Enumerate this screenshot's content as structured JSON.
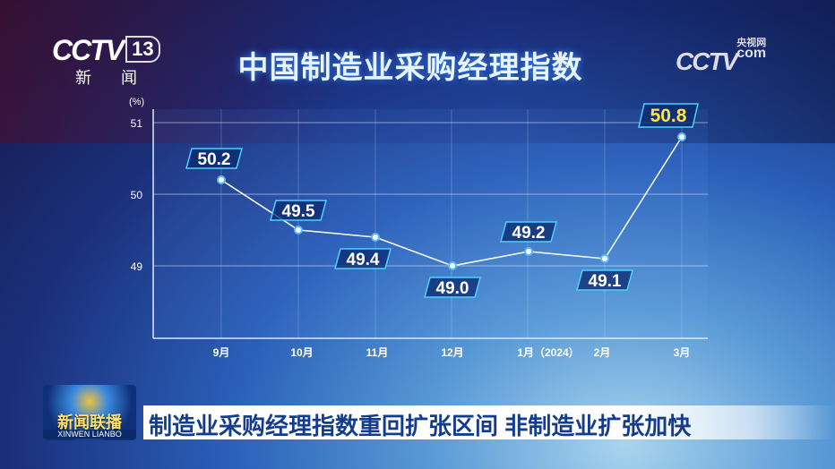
{
  "header": {
    "title": "中国制造业采购经理指数",
    "channel_logo": "CCTV",
    "channel_number": "13",
    "channel_name": "新 闻",
    "site_logo": "CCTV",
    "site_small": "央视网",
    "site_suffix": "com"
  },
  "chart_data": {
    "type": "line",
    "title": "中国制造业采购经理指数",
    "ylabel": "(%)",
    "categories": [
      "9月",
      "10月",
      "11月",
      "12月",
      "1月（2024）",
      "2月",
      "3月"
    ],
    "values": [
      50.2,
      49.5,
      49.4,
      49.0,
      49.2,
      49.1,
      50.8
    ],
    "data_labels": [
      "50.2",
      "49.5",
      "49.4",
      "49.0",
      "49.2",
      "49.1",
      "50.8"
    ],
    "yticks": [
      "49",
      "50",
      "51"
    ],
    "ylim": [
      48,
      51.2
    ],
    "grid": true,
    "colors": {
      "line": "#ffffff",
      "label_border": "#4fd0ff",
      "highlight_text": "#ffe14a",
      "text": "#ffffff"
    }
  },
  "footer": {
    "program_cn": "新闻联播",
    "program_en": "XINWEN LIANBO",
    "headline": "制造业采购经理指数重回扩张区间 非制造业扩张加快"
  }
}
